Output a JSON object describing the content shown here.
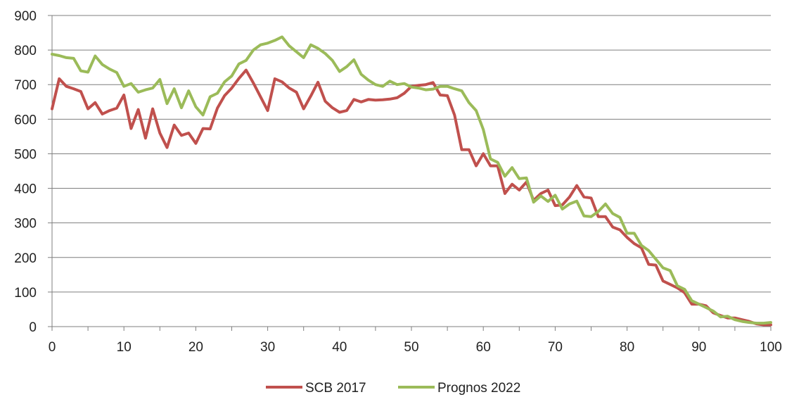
{
  "chart_data": {
    "type": "line",
    "x": [
      0,
      1,
      2,
      3,
      4,
      5,
      6,
      7,
      8,
      9,
      10,
      11,
      12,
      13,
      14,
      15,
      16,
      17,
      18,
      19,
      20,
      21,
      22,
      23,
      24,
      25,
      26,
      27,
      28,
      29,
      30,
      31,
      32,
      33,
      34,
      35,
      36,
      37,
      38,
      39,
      40,
      41,
      42,
      43,
      44,
      45,
      46,
      47,
      48,
      49,
      50,
      51,
      52,
      53,
      54,
      55,
      56,
      57,
      58,
      59,
      60,
      61,
      62,
      63,
      64,
      65,
      66,
      67,
      68,
      69,
      70,
      71,
      72,
      73,
      74,
      75,
      76,
      77,
      78,
      79,
      80,
      81,
      82,
      83,
      84,
      85,
      86,
      87,
      88,
      89,
      90,
      91,
      92,
      93,
      94,
      95,
      96,
      97,
      98,
      99,
      100
    ],
    "xlim": [
      0,
      100
    ],
    "ylim": [
      0,
      900
    ],
    "x_ticks": [
      0,
      10,
      20,
      30,
      40,
      50,
      60,
      70,
      80,
      90,
      100
    ],
    "y_ticks": [
      0,
      100,
      200,
      300,
      400,
      500,
      600,
      700,
      800,
      900
    ],
    "grid": "horizontal",
    "legend_position": "bottom",
    "series": [
      {
        "name": "SCB 2017",
        "color": "#c0504d",
        "values": [
          630,
          717,
          695,
          688,
          680,
          630,
          648,
          615,
          625,
          632,
          670,
          573,
          628,
          545,
          630,
          560,
          518,
          583,
          553,
          560,
          530,
          573,
          572,
          632,
          668,
          690,
          718,
          742,
          705,
          665,
          625,
          717,
          708,
          690,
          678,
          630,
          667,
          707,
          652,
          633,
          620,
          625,
          657,
          650,
          657,
          655,
          656,
          658,
          662,
          675,
          695,
          698,
          700,
          706,
          670,
          668,
          612,
          512,
          512,
          465,
          500,
          465,
          465,
          385,
          412,
          395,
          418,
          365,
          385,
          395,
          350,
          352,
          375,
          408,
          375,
          372,
          318,
          318,
          288,
          280,
          258,
          240,
          228,
          180,
          178,
          132,
          122,
          112,
          98,
          65,
          65,
          60,
          40,
          32,
          25,
          25,
          20,
          15,
          8,
          5,
          5
        ],
        "swatch_color": "#c0504d"
      },
      {
        "name": "Prognos 2022",
        "color": "#9bbb59",
        "values": [
          788,
          784,
          778,
          776,
          740,
          736,
          783,
          758,
          745,
          735,
          695,
          703,
          678,
          685,
          690,
          715,
          645,
          688,
          633,
          682,
          636,
          612,
          665,
          675,
          708,
          725,
          760,
          770,
          800,
          815,
          820,
          828,
          838,
          812,
          795,
          778,
          815,
          805,
          790,
          770,
          738,
          752,
          772,
          730,
          713,
          700,
          695,
          710,
          700,
          703,
          693,
          690,
          685,
          687,
          695,
          695,
          688,
          682,
          648,
          625,
          570,
          485,
          475,
          435,
          460,
          428,
          430,
          360,
          378,
          362,
          380,
          340,
          355,
          363,
          320,
          318,
          333,
          355,
          327,
          316,
          270,
          270,
          235,
          220,
          195,
          170,
          162,
          118,
          108,
          75,
          65,
          55,
          45,
          28,
          30,
          20,
          15,
          12,
          10,
          10,
          12
        ]
      }
    ]
  }
}
